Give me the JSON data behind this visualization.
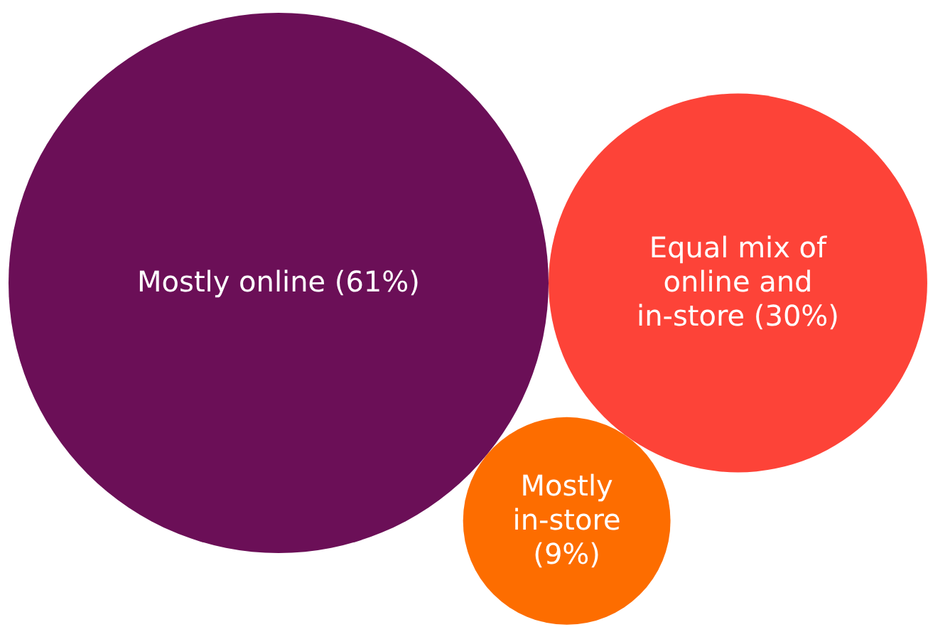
{
  "chart_data": {
    "type": "other",
    "categories": [
      "Mostly online",
      "Equal mix of online and in-store",
      "Mostly in-store"
    ],
    "values": [
      61,
      30,
      9
    ],
    "value_labels": [
      "(61%)",
      "(30%)",
      "(9%)"
    ],
    "colors": [
      "#6b0f57",
      "#fd4338",
      "#fd6d00"
    ]
  }
}
